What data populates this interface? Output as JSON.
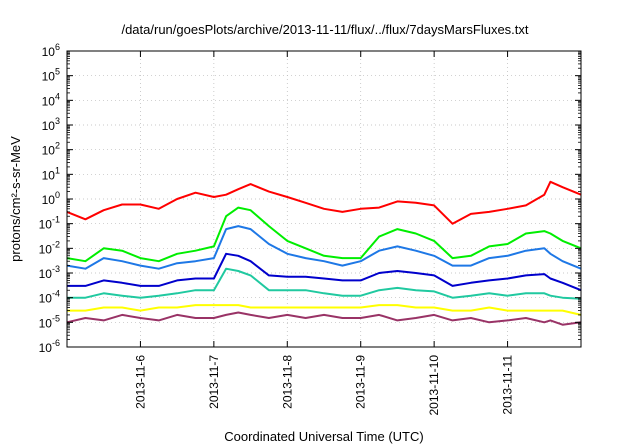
{
  "chart_data": {
    "type": "line",
    "title": "/data/run/goesPlots/archive/2013-11-11/flux/../flux/7daysMarsFluxes.txt",
    "xlabel": "Coordinated Universal Time (UTC)",
    "ylabel": "protons/cm²-s-sr-MeV",
    "yscale": "log",
    "xlim": [
      "2013-11-05T00:00",
      "2013-11-12T00:00"
    ],
    "ylim": [
      1e-06,
      1000000.0
    ],
    "grid": true,
    "legend": "none",
    "x_tick_labels": [
      "2013-11-6",
      "2013-11-7",
      "2013-11-8",
      "2013-11-9",
      "2013-11-10",
      "2013-11-11"
    ],
    "x_tick_dates": [
      "2013-11-06T00:00",
      "2013-11-07T00:00",
      "2013-11-08T00:00",
      "2013-11-09T00:00",
      "2013-11-10T00:00",
      "2013-11-11T00:00"
    ],
    "y_tick_labels": [
      {
        "base": "10",
        "exp": "-6"
      },
      {
        "base": "10",
        "exp": "-5"
      },
      {
        "base": "10",
        "exp": "-4"
      },
      {
        "base": "10",
        "exp": "-3"
      },
      {
        "base": "10",
        "exp": "-2"
      },
      {
        "base": "10",
        "exp": "-1"
      },
      {
        "base": "10",
        "exp": "0"
      },
      {
        "base": "10",
        "exp": "1"
      },
      {
        "base": "10",
        "exp": "2"
      },
      {
        "base": "10",
        "exp": "3"
      },
      {
        "base": "10",
        "exp": "4"
      },
      {
        "base": "10",
        "exp": "5"
      },
      {
        "base": "10",
        "exp": "6"
      }
    ],
    "x": [
      "2013-11-05T00:00",
      "2013-11-05T06:00",
      "2013-11-05T12:00",
      "2013-11-05T18:00",
      "2013-11-06T00:00",
      "2013-11-06T06:00",
      "2013-11-06T12:00",
      "2013-11-06T18:00",
      "2013-11-07T00:00",
      "2013-11-07T04:00",
      "2013-11-07T08:00",
      "2013-11-07T12:00",
      "2013-11-07T18:00",
      "2013-11-08T00:00",
      "2013-11-08T06:00",
      "2013-11-08T12:00",
      "2013-11-08T18:00",
      "2013-11-09T00:00",
      "2013-11-09T06:00",
      "2013-11-09T12:00",
      "2013-11-09T18:00",
      "2013-11-10T00:00",
      "2013-11-10T06:00",
      "2013-11-10T12:00",
      "2013-11-10T18:00",
      "2013-11-11T00:00",
      "2013-11-11T06:00",
      "2013-11-11T12:00",
      "2013-11-11T14:00",
      "2013-11-11T18:00",
      "2013-11-12T00:00"
    ],
    "series": [
      {
        "color": "#ff0000",
        "values": [
          0.3,
          0.15,
          0.35,
          0.6,
          0.6,
          0.4,
          1.0,
          1.8,
          1.2,
          1.5,
          2.5,
          4.0,
          2.0,
          1.2,
          0.7,
          0.4,
          0.3,
          0.4,
          0.45,
          0.8,
          0.7,
          0.55,
          0.1,
          0.25,
          0.3,
          0.4,
          0.55,
          1.5,
          5.0,
          3.0,
          1.5
        ]
      },
      {
        "color": "#00ee00",
        "values": [
          0.004,
          0.003,
          0.01,
          0.008,
          0.004,
          0.003,
          0.006,
          0.008,
          0.012,
          0.2,
          0.45,
          0.35,
          0.08,
          0.02,
          0.01,
          0.005,
          0.004,
          0.004,
          0.03,
          0.06,
          0.04,
          0.02,
          0.004,
          0.005,
          0.012,
          0.015,
          0.04,
          0.05,
          0.04,
          0.02,
          0.01
        ]
      },
      {
        "color": "#1e78e6",
        "values": [
          0.002,
          0.0015,
          0.004,
          0.003,
          0.002,
          0.0015,
          0.0025,
          0.003,
          0.004,
          0.06,
          0.08,
          0.06,
          0.015,
          0.006,
          0.004,
          0.003,
          0.002,
          0.003,
          0.008,
          0.012,
          0.008,
          0.005,
          0.002,
          0.002,
          0.004,
          0.005,
          0.008,
          0.01,
          0.006,
          0.003,
          0.0015
        ]
      },
      {
        "color": "#0000cc",
        "values": [
          0.0003,
          0.0003,
          0.0005,
          0.0004,
          0.0003,
          0.0003,
          0.0005,
          0.0006,
          0.0006,
          0.006,
          0.005,
          0.003,
          0.0008,
          0.0007,
          0.0007,
          0.0006,
          0.0005,
          0.0005,
          0.001,
          0.0012,
          0.001,
          0.0008,
          0.0003,
          0.0004,
          0.0005,
          0.0006,
          0.0008,
          0.0009,
          0.0006,
          0.0004,
          0.0002
        ]
      },
      {
        "color": "#20c9a0",
        "values": [
          0.0001,
          0.0001,
          0.00015,
          0.00012,
          0.0001,
          0.00012,
          0.00015,
          0.0002,
          0.0002,
          0.0015,
          0.0012,
          0.0008,
          0.0002,
          0.0002,
          0.0002,
          0.00015,
          0.00012,
          0.00012,
          0.0002,
          0.00025,
          0.0002,
          0.00018,
          0.0001,
          0.00012,
          0.00015,
          0.00012,
          0.00015,
          0.00015,
          0.00012,
          0.0001,
          9e-05
        ]
      },
      {
        "color": "#ffff00",
        "values": [
          3e-05,
          3e-05,
          4e-05,
          4e-05,
          3e-05,
          4e-05,
          4e-05,
          5e-05,
          5e-05,
          5e-05,
          5e-05,
          4e-05,
          4e-05,
          4e-05,
          4e-05,
          4e-05,
          4e-05,
          4e-05,
          5e-05,
          5e-05,
          4e-05,
          4e-05,
          3e-05,
          3e-05,
          4e-05,
          3e-05,
          3e-05,
          3e-05,
          3e-05,
          3e-05,
          2e-05
        ]
      },
      {
        "color": "#993366",
        "values": [
          1e-05,
          1.5e-05,
          1.2e-05,
          2e-05,
          1.5e-05,
          1.2e-05,
          2e-05,
          1.5e-05,
          1.5e-05,
          2e-05,
          2.5e-05,
          2e-05,
          1.5e-05,
          2e-05,
          1.5e-05,
          2e-05,
          1.5e-05,
          1.5e-05,
          2e-05,
          1.2e-05,
          1.5e-05,
          2e-05,
          1.2e-05,
          1.5e-05,
          1e-05,
          1.2e-05,
          1.5e-05,
          1e-05,
          1.2e-05,
          8e-06,
          1e-05
        ]
      }
    ]
  }
}
